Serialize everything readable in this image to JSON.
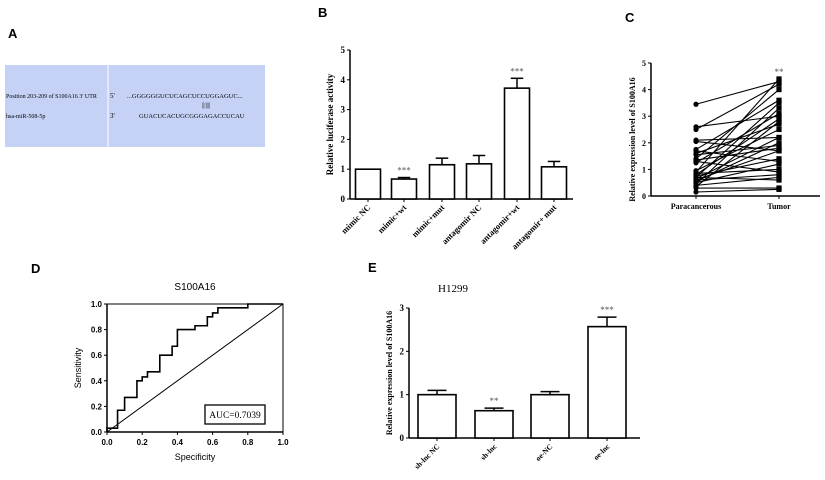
{
  "panel_labels": [
    "A",
    "B",
    "C",
    "D",
    "E"
  ],
  "panelA": {
    "row1_label": "Position 203-209 of S100A16 3' UTR",
    "row1_end": "5'",
    "row1_seq": "...GGGGGGUCUCAGCUCCUGGAGUC...",
    "pairing": "|||||||",
    "row2_label": "hsa-miR-508-5p",
    "row2_end": "3'",
    "row2_seq": "GUACUCACUGCGGGAGACCUCAU",
    "bg_color": "#c5d2f6"
  },
  "chart_data": [
    {
      "id": "B",
      "type": "bar",
      "title": "",
      "ylabel": "Relative luciferase activity",
      "ylim": [
        0,
        5
      ],
      "yticks": [
        0,
        1,
        2,
        3,
        4,
        5
      ],
      "categories": [
        "mimic NC",
        "mimic+wt",
        "mimic+mut",
        "antagomir NC",
        "antagomir+wt",
        "antagomir+ mut"
      ],
      "values": [
        1.0,
        0.67,
        1.15,
        1.18,
        3.72,
        1.08
      ],
      "errors": [
        0.0,
        0.05,
        0.22,
        0.28,
        0.33,
        0.18
      ],
      "annotations": [
        "",
        "***",
        "",
        "",
        "***",
        ""
      ]
    },
    {
      "id": "C",
      "type": "line",
      "title": "",
      "ylabel": "Relative expression level of S100A16",
      "ylim": [
        0,
        5
      ],
      "yticks": [
        0,
        1,
        2,
        3,
        4,
        5
      ],
      "categories": [
        "Paracancerous",
        "Tumor"
      ],
      "annotation": "**",
      "pairs": [
        [
          3.45,
          4.3
        ],
        [
          2.6,
          3.0
        ],
        [
          2.5,
          4.2
        ],
        [
          2.1,
          2.2
        ],
        [
          2.05,
          1.7
        ],
        [
          1.75,
          3.6
        ],
        [
          1.7,
          1.3
        ],
        [
          1.6,
          2.7
        ],
        [
          1.55,
          1.9
        ],
        [
          1.4,
          4.0
        ],
        [
          1.35,
          1.8
        ],
        [
          1.3,
          0.9
        ],
        [
          1.25,
          3.1
        ],
        [
          0.95,
          2.5
        ],
        [
          0.9,
          4.4
        ],
        [
          0.85,
          1.0
        ],
        [
          0.8,
          2.9
        ],
        [
          0.75,
          1.4
        ],
        [
          0.7,
          3.5
        ],
        [
          0.7,
          0.6
        ],
        [
          0.65,
          2.2
        ],
        [
          0.6,
          1.7
        ],
        [
          0.6,
          0.8
        ],
        [
          0.55,
          2.0
        ],
        [
          0.5,
          1.2
        ],
        [
          0.45,
          3.3
        ],
        [
          0.4,
          0.7
        ],
        [
          0.35,
          2.8
        ],
        [
          0.3,
          0.3
        ],
        [
          0.15,
          0.25
        ]
      ]
    },
    {
      "id": "D",
      "type": "line",
      "title": "S100A16",
      "xlabel": "Specificity",
      "ylabel": "Sensitivity",
      "xlim": [
        0,
        1
      ],
      "ylim": [
        0,
        1
      ],
      "xticks": [
        "0.0",
        "0.2",
        "0.4",
        "0.6",
        "0.8",
        "1.0"
      ],
      "yticks": [
        "0.0",
        "0.2",
        "0.4",
        "0.6",
        "0.8",
        "1.0"
      ],
      "annotation": "AUC=0.7039",
      "roc": [
        [
          0,
          0
        ],
        [
          0,
          0.03
        ],
        [
          0.06,
          0.03
        ],
        [
          0.06,
          0.17
        ],
        [
          0.1,
          0.17
        ],
        [
          0.1,
          0.27
        ],
        [
          0.17,
          0.27
        ],
        [
          0.17,
          0.4
        ],
        [
          0.2,
          0.4
        ],
        [
          0.2,
          0.43
        ],
        [
          0.23,
          0.43
        ],
        [
          0.23,
          0.47
        ],
        [
          0.3,
          0.47
        ],
        [
          0.3,
          0.6
        ],
        [
          0.37,
          0.6
        ],
        [
          0.37,
          0.67
        ],
        [
          0.4,
          0.67
        ],
        [
          0.4,
          0.8
        ],
        [
          0.5,
          0.8
        ],
        [
          0.5,
          0.83
        ],
        [
          0.57,
          0.83
        ],
        [
          0.57,
          0.9
        ],
        [
          0.6,
          0.9
        ],
        [
          0.6,
          0.93
        ],
        [
          0.63,
          0.93
        ],
        [
          0.63,
          0.97
        ],
        [
          0.8,
          0.97
        ],
        [
          0.8,
          1
        ],
        [
          1,
          1
        ]
      ],
      "reference": [
        [
          0,
          0
        ],
        [
          1,
          1
        ]
      ]
    },
    {
      "id": "E",
      "type": "bar",
      "title": "H1299",
      "ylabel": "Relative expression level of  S100A16",
      "ylim": [
        0,
        3
      ],
      "yticks": [
        0,
        1,
        2,
        3
      ],
      "categories": [
        "sh-lnc NC",
        "sh-lnc",
        "oe-NC",
        "oe-lnc"
      ],
      "values": [
        1.0,
        0.63,
        1.0,
        2.57
      ],
      "errors": [
        0.1,
        0.06,
        0.07,
        0.22
      ],
      "annotations": [
        "",
        "**",
        "",
        "***"
      ]
    }
  ]
}
